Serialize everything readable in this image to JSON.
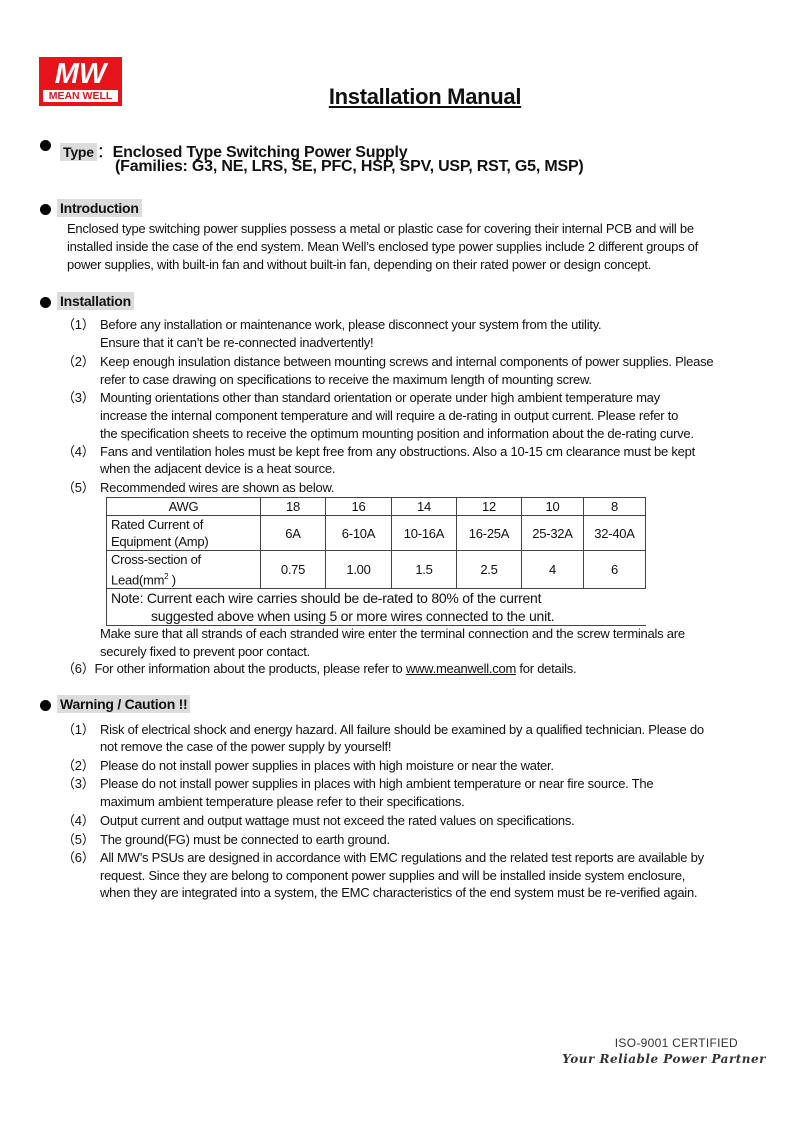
{
  "logo": {
    "mark": "MW",
    "name": "MEAN WELL",
    "color": "#e8141b"
  },
  "title": "Installation Manual",
  "type": {
    "label": "Type",
    "sep": "：",
    "line1": "Enclosed Type Switching Power Supply",
    "line2": "(Families: G3, NE, LRS, SE, PFC, HSP, SPV, USP, RST, G5, MSP)"
  },
  "introduction": {
    "heading": "Introduction",
    "lines": [
      "Enclosed type switching power supplies possess a metal or plastic case for covering their internal PCB and will be",
      "installed inside the case of the end system. Mean Well’s enclosed type power supplies include 2 different groups of",
      "power supplies, with built-in fan and without built-in fan, depending on their rated power or design concept."
    ]
  },
  "installation": {
    "heading": "Installation",
    "items": [
      {
        "num": "（1）",
        "lines": [
          "Before any installation or maintenance work, please disconnect your system from the utility.",
          "Ensure that it can’t be re-connected inadvertently!"
        ]
      },
      {
        "num": "（2）",
        "lines": [
          "Keep enough insulation distance between mounting screws and internal components of power supplies. Please",
          "refer to case drawing on specifications to receive the maximum length of mounting screw."
        ]
      },
      {
        "num": "（3）",
        "lines": [
          "Mounting orientations other than standard orientation or operate under high ambient temperature may",
          "increase the internal component temperature and will require a de-rating in output current. Please refer to",
          "the specification sheets to receive the optimum mounting position and information about the de-rating curve."
        ]
      },
      {
        "num": "（4）",
        "lines": [
          "Fans and ventilation holes must be kept free from any obstructions. Also a 10-15 cm clearance must be kept",
          "when the adjacent device is a heat source."
        ]
      },
      {
        "num": "（5）",
        "lines": [
          "Recommended wires are shown as below."
        ]
      }
    ],
    "table": {
      "row_awg": {
        "label": "AWG",
        "values": [
          "18",
          "16",
          "14",
          "12",
          "10",
          "8"
        ]
      },
      "row_current": {
        "label1": "Rated Current of",
        "label2": "Equipment (Amp)",
        "values": [
          "6A",
          "6-10A",
          "10-16A",
          "16-25A",
          "25-32A",
          "32-40A"
        ]
      },
      "row_cross": {
        "label1": "Cross-section of",
        "label2": "Lead(mm",
        "sup": "2",
        "label2_end": " )",
        "values": [
          "0.75",
          "1.00",
          "1.5",
          "2.5",
          "4",
          "6"
        ]
      },
      "note1": "Note: Current each wire carries should be de-rated to 80% of the current",
      "note2": "suggested above when using 5 or more wires connected to the unit."
    },
    "after_table": [
      "Make sure that all strands of each stranded wire enter the terminal connection and the screw terminals are",
      "securely fixed to prevent poor contact."
    ],
    "item6": {
      "num": "（6）",
      "pre": "For other information about the products, please refer to ",
      "link": "www.meanwell.com",
      "post": " for details."
    }
  },
  "warning": {
    "heading": "Warning / Caution !!",
    "items": [
      {
        "num": "（1）",
        "lines": [
          "Risk of electrical shock and energy hazard. All failure should be examined by a qualified technician. Please do",
          "not remove the case of the power supply by yourself!"
        ]
      },
      {
        "num": "（2）",
        "lines": [
          "Please do not install power supplies in places with high moisture or near the water."
        ]
      },
      {
        "num": "（3）",
        "lines": [
          "Please do not install power supplies in places with high ambient temperature or near fire source. The",
          "maximum ambient temperature please refer to their specifications."
        ]
      },
      {
        "num": "（4）",
        "lines": [
          "Output current and output wattage must not exceed the rated values on specifications."
        ]
      },
      {
        "num": "（5）",
        "lines": [
          "The ground(FG) must be connected to earth ground."
        ]
      },
      {
        "num": "（6）",
        "lines": [
          "All MW’s PSUs are designed in accordance with EMC regulations and the related test reports are available by",
          "request. Since they are belong to component power supplies and will be installed inside system enclosure,",
          "when they are integrated into a system, the EMC characteristics of the end system must be re-verified again."
        ]
      }
    ]
  },
  "footer": {
    "iso": "ISO-9001 CERTIFIED",
    "slogan": "Your Reliable Power Partner"
  }
}
